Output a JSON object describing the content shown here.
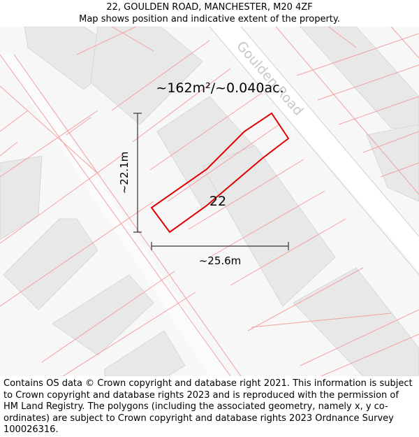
{
  "header": {
    "address": "22, GOULDEN ROAD, MANCHESTER, M20 4ZF",
    "subtitle": "Map shows position and indicative extent of the property."
  },
  "map": {
    "road_name": "Goulden Road",
    "area_label": "~162m²/~0.040ac.",
    "plot_number": "22",
    "height_label": "~22.1m",
    "width_label": "~25.6m",
    "colors": {
      "background": "#f7f7f7",
      "building": "#e8e8e8",
      "road": "#ffffff",
      "parcel_line": "#f4a0a0",
      "property_outline": "#e00000",
      "road_label": "#c8c8c8",
      "dimension_line": "#333333"
    }
  },
  "footer": {
    "copyright": "Contains OS data © Crown copyright and database right 2021. This information is subject to Crown copyright and database rights 2023 and is reproduced with the permission of HM Land Registry. The polygons (including the associated geometry, namely x, y co-ordinates) are subject to Crown copyright and database rights 2023 Ordnance Survey 100026316."
  }
}
